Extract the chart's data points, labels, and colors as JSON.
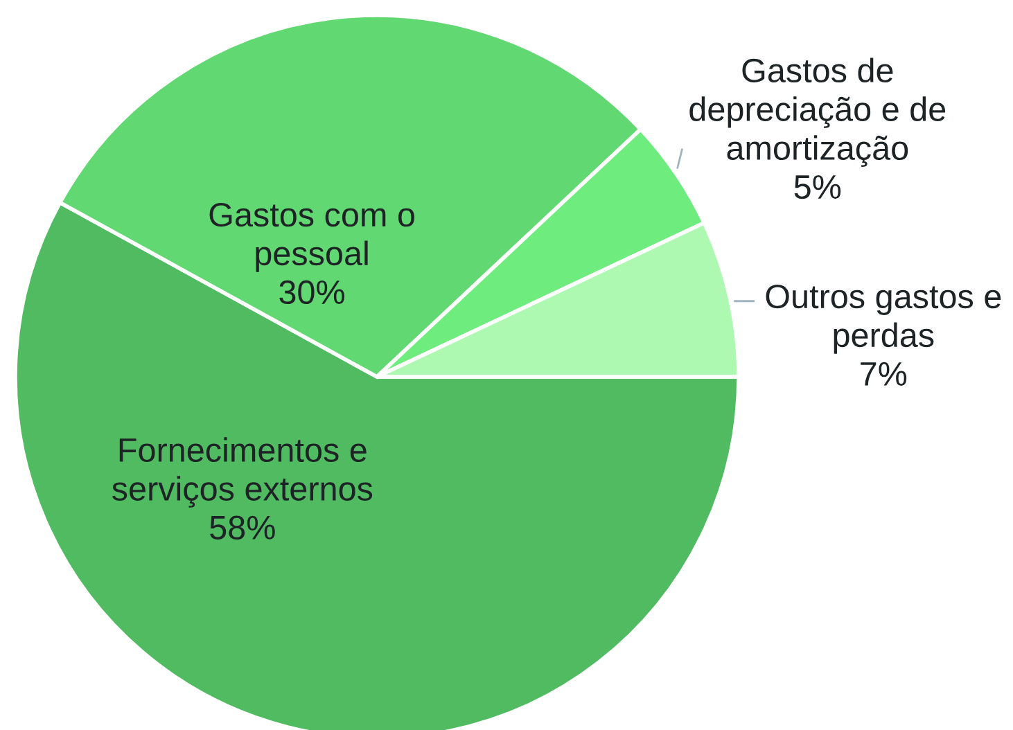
{
  "chart_data": {
    "type": "pie",
    "categories": [
      "Fornecimentos e serviços externos",
      "Gastos com o pessoal",
      "Gastos de depreciação e de amortização",
      "Outros gastos e perdas"
    ],
    "values": [
      58,
      30,
      5,
      7
    ],
    "value_labels": [
      "58%",
      "30%",
      "5%",
      "7%"
    ],
    "colors": [
      "#51bb62",
      "#62d873",
      "#6eec7e",
      "#adf9b1"
    ]
  }
}
